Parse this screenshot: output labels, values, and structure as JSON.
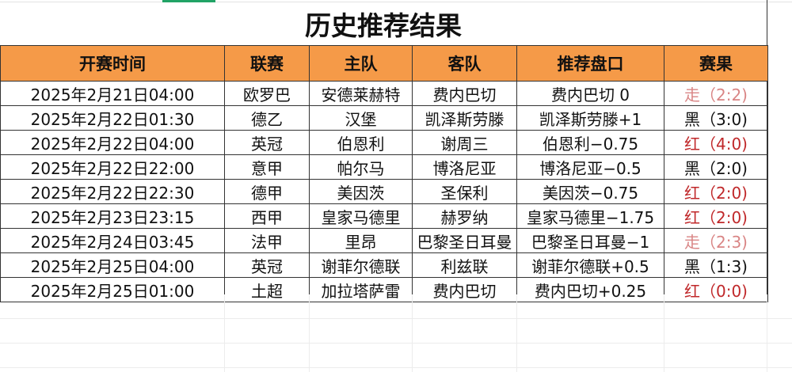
{
  "title": "历史推荐结果",
  "colors": {
    "header_bg": "#f59a48",
    "win": "#c0282a",
    "draw": "#d98585",
    "loss": "#111111",
    "tab_indicator": "#21a366"
  },
  "headers": [
    "开赛时间",
    "联赛",
    "主队",
    "客队",
    "推荐盘口",
    "赛果"
  ],
  "rows": [
    {
      "time": "2025年2月21日04:00",
      "league": "欧罗巴",
      "home": "安德莱赫特",
      "away": "费内巴切",
      "pick": "费内巴切 0",
      "result": "走（2:2)",
      "type": "draw"
    },
    {
      "time": "2025年2月22日01:30",
      "league": "德乙",
      "home": "汉堡",
      "away": "凯泽斯劳滕",
      "pick": "凯泽斯劳滕+1",
      "result": "黑（3:0)",
      "type": "black"
    },
    {
      "time": "2025年2月22日04:00",
      "league": "英冠",
      "home": "伯恩利",
      "away": "谢周三",
      "pick": "伯恩利−0.75",
      "result": "红（4:0)",
      "type": "red"
    },
    {
      "time": "2025年2月22日22:00",
      "league": "意甲",
      "home": "帕尔马",
      "away": "博洛尼亚",
      "pick": "博洛尼亚−0.5",
      "result": "黑（2:0)",
      "type": "black"
    },
    {
      "time": "2025年2月22日22:30",
      "league": "德甲",
      "home": "美因茨",
      "away": "圣保利",
      "pick": "美因茨−0.75",
      "result": "红（2:0)",
      "type": "red"
    },
    {
      "time": "2025年2月23日23:15",
      "league": "西甲",
      "home": "皇家马德里",
      "away": "赫罗纳",
      "pick": "皇家马德里−1.75",
      "result": "红（2:0)",
      "type": "red"
    },
    {
      "time": "2025年2月24日03:45",
      "league": "法甲",
      "home": "里昂",
      "away": "巴黎圣日耳曼",
      "pick": "巴黎圣日耳曼−1",
      "result": "走（2:3)",
      "type": "draw"
    },
    {
      "time": "2025年2月25日04:00",
      "league": "英冠",
      "home": "谢菲尔德联",
      "away": "利兹联",
      "pick": "谢菲尔德联+0.5",
      "result": "黑（1:3)",
      "type": "black"
    },
    {
      "time": "2025年2月25日01:00",
      "league": "土超",
      "home": "加拉塔萨雷",
      "away": "费内巴切",
      "pick": "费内巴切+0.25",
      "result": "红（0:0)",
      "type": "red"
    }
  ]
}
